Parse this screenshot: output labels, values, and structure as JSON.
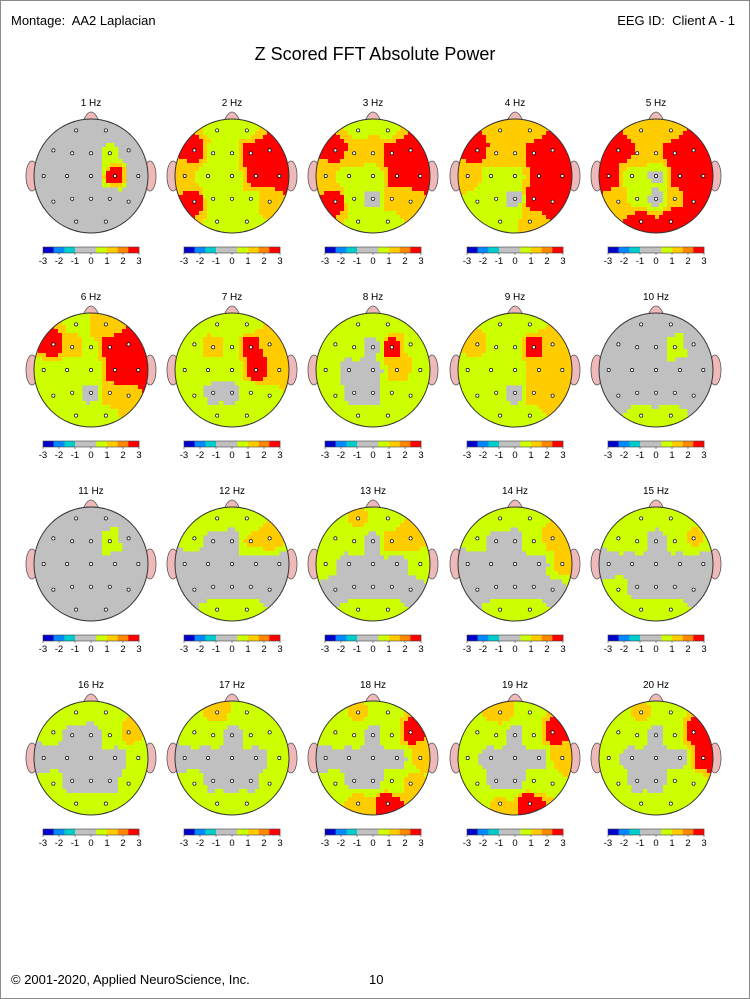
{
  "header": {
    "montage_label": "Montage:",
    "montage_value": "AA2 Laplacian",
    "eeg_id_label": "EEG ID:",
    "eeg_id_value": "Client A - 1"
  },
  "title": "Z Scored FFT Absolute Power",
  "footer": {
    "copyright": "© 2001-2020, Applied NeuroScience, Inc.",
    "page_number": "10"
  },
  "colors": {
    "background": "#ffffff",
    "head_gray": "#c0c0c0",
    "nose_ear": "#efb9b9",
    "color_scale": [
      "#0000cc",
      "#0088ff",
      "#00cccc",
      "#c0c0c0",
      "#c0c0c0",
      "#ccff00",
      "#ffcc00",
      "#ff8800",
      "#ff0000"
    ]
  },
  "chart_data": {
    "type": "heatmap",
    "title": "Z Scored FFT Absolute Power",
    "scale_ticks": [
      "-3",
      "-2",
      "-1",
      "0",
      "1",
      "2",
      "3"
    ],
    "scale_range": [
      -3,
      3
    ],
    "electrodes": [
      "Fp1",
      "Fp2",
      "F7",
      "F3",
      "Fz",
      "F4",
      "F8",
      "T3",
      "C3",
      "Cz",
      "C4",
      "T4",
      "T5",
      "P3",
      "Pz",
      "P4",
      "T6",
      "O1",
      "O2"
    ],
    "maps": [
      {
        "label": "1 Hz",
        "z": {
          "Fp1": 0,
          "Fp2": 0,
          "F7": 0,
          "F3": 0,
          "Fz": 0,
          "F4": 1.3,
          "F8": 0,
          "T3": 0,
          "C3": 0,
          "Cz": 0,
          "C4": 3,
          "T4": 0,
          "T5": 0,
          "P3": 0,
          "Pz": 0,
          "P4": 0,
          "T6": 0,
          "O1": 0,
          "O2": 0
        }
      },
      {
        "label": "2 Hz",
        "z": {
          "Fp1": 1.5,
          "Fp2": 1.6,
          "F7": 3,
          "F3": 1.6,
          "Fz": 1.5,
          "F4": 3,
          "F8": 3,
          "T3": 2,
          "C3": 1.4,
          "Cz": 1.5,
          "C4": 3,
          "T4": 3,
          "T5": 3,
          "P3": 1.3,
          "Pz": 1.4,
          "P4": 1.6,
          "T6": 2.2,
          "O1": 1.6,
          "O2": 1.3
        }
      },
      {
        "label": "3 Hz",
        "z": {
          "Fp1": 1.6,
          "Fp2": 1.6,
          "F7": 3,
          "F3": 2.3,
          "Fz": 1.8,
          "F4": 3,
          "F8": 3,
          "T3": 2,
          "C3": 1.4,
          "Cz": 1.4,
          "C4": 3,
          "T4": 3,
          "T5": 3,
          "P3": 1.2,
          "Pz": 0.8,
          "P4": 2.2,
          "T6": 2.2,
          "O1": 1.6,
          "O2": 1.6
        }
      },
      {
        "label": "4 Hz",
        "z": {
          "Fp1": 2,
          "Fp2": 2.2,
          "F7": 3,
          "F3": 2.2,
          "Fz": 2,
          "F4": 3,
          "F8": 3,
          "T3": 2.2,
          "C3": 1.5,
          "Cz": 1.5,
          "C4": 3,
          "T4": 3,
          "T5": 1.5,
          "P3": 1.3,
          "Pz": 0.8,
          "P4": 3,
          "T6": 3,
          "O1": 1.4,
          "O2": 1.8
        }
      },
      {
        "label": "5 Hz",
        "z": {
          "Fp1": 2.2,
          "Fp2": 2.3,
          "F7": 3,
          "F3": 2.5,
          "Fz": 2.2,
          "F4": 3,
          "F8": 3,
          "T3": 3,
          "C3": 1.5,
          "Cz": 0.9,
          "C4": 3,
          "T4": 3,
          "T5": 2.2,
          "P3": 1.5,
          "Pz": 0.8,
          "P4": 2.4,
          "T6": 3,
          "O1": 3,
          "O2": 3
        }
      },
      {
        "label": "6 Hz",
        "z": {
          "Fp1": 1.6,
          "Fp2": 1.8,
          "F7": 3,
          "F3": 2,
          "Fz": 1.6,
          "F4": 3,
          "F8": 3,
          "T3": 1.6,
          "C3": 1.2,
          "Cz": 1.2,
          "C4": 3,
          "T4": 3,
          "T5": 1.6,
          "P3": 1.2,
          "Pz": 0.8,
          "P4": 2.4,
          "T6": 2.4,
          "O1": 1.4,
          "O2": 1.6
        }
      },
      {
        "label": "7 Hz",
        "z": {
          "Fp1": 1.4,
          "Fp2": 1.4,
          "F7": 1.6,
          "F3": 2.2,
          "Fz": 1.5,
          "F4": 3,
          "F8": 2.2,
          "T3": 1.4,
          "C3": 1.3,
          "Cz": 1,
          "C4": 3,
          "T4": 2.2,
          "T5": 1.4,
          "P3": 0.8,
          "Pz": 0.8,
          "P4": 1.4,
          "T6": 1.6,
          "O1": 1.3,
          "O2": 1.4
        }
      },
      {
        "label": "8 Hz",
        "z": {
          "Fp1": 1.3,
          "Fp2": 1.2,
          "F7": 1.3,
          "F3": 1.2,
          "Fz": 0.8,
          "F4": 3,
          "F8": 1.6,
          "T3": 1.3,
          "C3": 0.8,
          "Cz": 0.8,
          "C4": 2.2,
          "T4": 1.6,
          "T5": 1.2,
          "P3": 0.8,
          "Pz": 0.8,
          "P4": 1.3,
          "T6": 1.4,
          "O1": 1.2,
          "O2": 1.2
        }
      },
      {
        "label": "9 Hz",
        "z": {
          "Fp1": 1.4,
          "Fp2": 1.5,
          "F7": 2,
          "F3": 1.5,
          "Fz": 1.3,
          "F4": 3,
          "F8": 1.8,
          "T3": 1.6,
          "C3": 1.4,
          "Cz": 1.3,
          "C4": 2.2,
          "T4": 2.2,
          "T5": 1.5,
          "P3": 1.2,
          "Pz": 0.8,
          "P4": 2.2,
          "T6": 2.2,
          "O1": 1.3,
          "O2": 1.6
        }
      },
      {
        "label": "10 Hz",
        "z": {
          "Fp1": 0.8,
          "Fp2": 0.8,
          "F7": 0.8,
          "F3": 0.8,
          "Fz": 0.8,
          "F4": 1.3,
          "F8": 0.8,
          "T3": 0.8,
          "C3": 0.8,
          "Cz": 0.8,
          "C4": 0.8,
          "T4": 0.8,
          "T5": 0.8,
          "P3": 0.8,
          "Pz": 0.8,
          "P4": 0.8,
          "T6": 0.8,
          "O1": 1.2,
          "O2": 1.2
        }
      },
      {
        "label": "11 Hz",
        "z": {
          "Fp1": 0.8,
          "Fp2": 0.8,
          "F7": 0.8,
          "F3": 0.8,
          "Fz": 0.8,
          "F4": 1.3,
          "F8": 0.8,
          "T3": 0.8,
          "C3": 0.8,
          "Cz": 0.8,
          "C4": 0.8,
          "T4": 0.8,
          "T5": 0.8,
          "P3": 0.8,
          "Pz": 0.8,
          "P4": 0.8,
          "T6": 0.8,
          "O1": 0.8,
          "O2": 0.8
        }
      },
      {
        "label": "12 Hz",
        "z": {
          "Fp1": 1.3,
          "Fp2": 1.3,
          "F7": 1.2,
          "F3": 0.8,
          "Fz": 0.8,
          "F4": 1.8,
          "F8": 2.2,
          "T3": 0.8,
          "C3": 0.8,
          "Cz": 0.8,
          "C4": 0.8,
          "T4": 0.8,
          "T5": 0.8,
          "P3": 0.8,
          "Pz": 0.8,
          "P4": 0.8,
          "T6": 0.8,
          "O1": 1.3,
          "O2": 1.3
        }
      },
      {
        "label": "13 Hz",
        "z": {
          "Fp1": 1.8,
          "Fp2": 1.2,
          "F7": 1.4,
          "F3": 1.3,
          "Fz": 0.8,
          "F4": 2.2,
          "F8": 2.3,
          "T3": 1.2,
          "C3": 0.8,
          "Cz": 0.8,
          "C4": 0.8,
          "T4": 1.2,
          "T5": 0.8,
          "P3": 0.8,
          "Pz": 0.8,
          "P4": 0.8,
          "T6": 0.8,
          "O1": 1.3,
          "O2": 1.3
        }
      },
      {
        "label": "14 Hz",
        "z": {
          "Fp1": 1.3,
          "Fp2": 1.3,
          "F7": 1.3,
          "F3": 0.8,
          "Fz": 0.8,
          "F4": 1.3,
          "F8": 2.2,
          "T3": 0.8,
          "C3": 0.8,
          "Cz": 0.8,
          "C4": 0.8,
          "T4": 2,
          "T5": 0.8,
          "P3": 0.8,
          "Pz": 0.8,
          "P4": 0.8,
          "T6": 0.8,
          "O1": 1.3,
          "O2": 1.3
        }
      },
      {
        "label": "15 Hz",
        "z": {
          "Fp1": 1.3,
          "Fp2": 1.3,
          "F7": 1.3,
          "F3": 1.2,
          "Fz": 0.8,
          "F4": 1.2,
          "F8": 1.8,
          "T3": 0.8,
          "C3": 0.8,
          "Cz": 0.8,
          "C4": 0.8,
          "T4": 0.8,
          "T5": 1.2,
          "P3": 0.8,
          "Pz": 0.8,
          "P4": 0.8,
          "T6": 0.8,
          "O1": 1.3,
          "O2": 1.3
        }
      },
      {
        "label": "16 Hz",
        "z": {
          "Fp1": 1.3,
          "Fp2": 1.3,
          "F7": 1.2,
          "F3": 0.8,
          "Fz": 0.8,
          "F4": 1.2,
          "F8": 2,
          "T3": 0.8,
          "C3": 0.8,
          "Cz": 0.8,
          "C4": 0.8,
          "T4": 1.2,
          "T5": 1.2,
          "P3": 0.8,
          "Pz": 0.8,
          "P4": 0.8,
          "T6": 1.2,
          "O1": 1.3,
          "O2": 1.3
        }
      },
      {
        "label": "17 Hz",
        "z": {
          "Fp1": 2,
          "Fp2": 1.3,
          "F7": 1.3,
          "F3": 1.2,
          "Fz": 0.8,
          "F4": 1.2,
          "F8": 1.5,
          "T3": 0.8,
          "C3": 0.8,
          "Cz": 0.8,
          "C4": 0.8,
          "T4": 1.2,
          "T5": 1.3,
          "P3": 0.8,
          "Pz": 0.8,
          "P4": 0.8,
          "T6": 1.3,
          "O1": 1.4,
          "O2": 1.4
        }
      },
      {
        "label": "18 Hz",
        "z": {
          "Fp1": 1.8,
          "Fp2": 1.4,
          "F7": 1.4,
          "F3": 1.2,
          "Fz": 0.8,
          "F4": 1.3,
          "F8": 3,
          "T3": 0.8,
          "C3": 0.8,
          "Cz": 0.8,
          "C4": 0.8,
          "T4": 1.8,
          "T5": 1.3,
          "P3": 0.8,
          "Pz": 0.8,
          "P4": 1.2,
          "T6": 1.8,
          "O1": 2,
          "O2": 3
        }
      },
      {
        "label": "19 Hz",
        "z": {
          "Fp1": 2.2,
          "Fp2": 1.4,
          "F7": 1.6,
          "F3": 1.2,
          "Fz": 0.8,
          "F4": 1.3,
          "F8": 3,
          "T3": 1.2,
          "C3": 0.8,
          "Cz": 0.8,
          "C4": 0.8,
          "T4": 2.2,
          "T5": 1.3,
          "P3": 0.8,
          "Pz": 0.8,
          "P4": 1.2,
          "T6": 1.6,
          "O1": 1.8,
          "O2": 3
        }
      },
      {
        "label": "20 Hz",
        "z": {
          "Fp1": 1.8,
          "Fp2": 1.4,
          "F7": 1.5,
          "F3": 1.2,
          "Fz": 0.8,
          "F4": 1.3,
          "F8": 3,
          "T3": 1.2,
          "C3": 0.8,
          "Cz": 0.8,
          "C4": 0.8,
          "T4": 3,
          "T5": 1.3,
          "P3": 0.8,
          "Pz": 0.8,
          "P4": 1.2,
          "T6": 1.5,
          "O1": 1.3,
          "O2": 1.4
        }
      }
    ]
  }
}
